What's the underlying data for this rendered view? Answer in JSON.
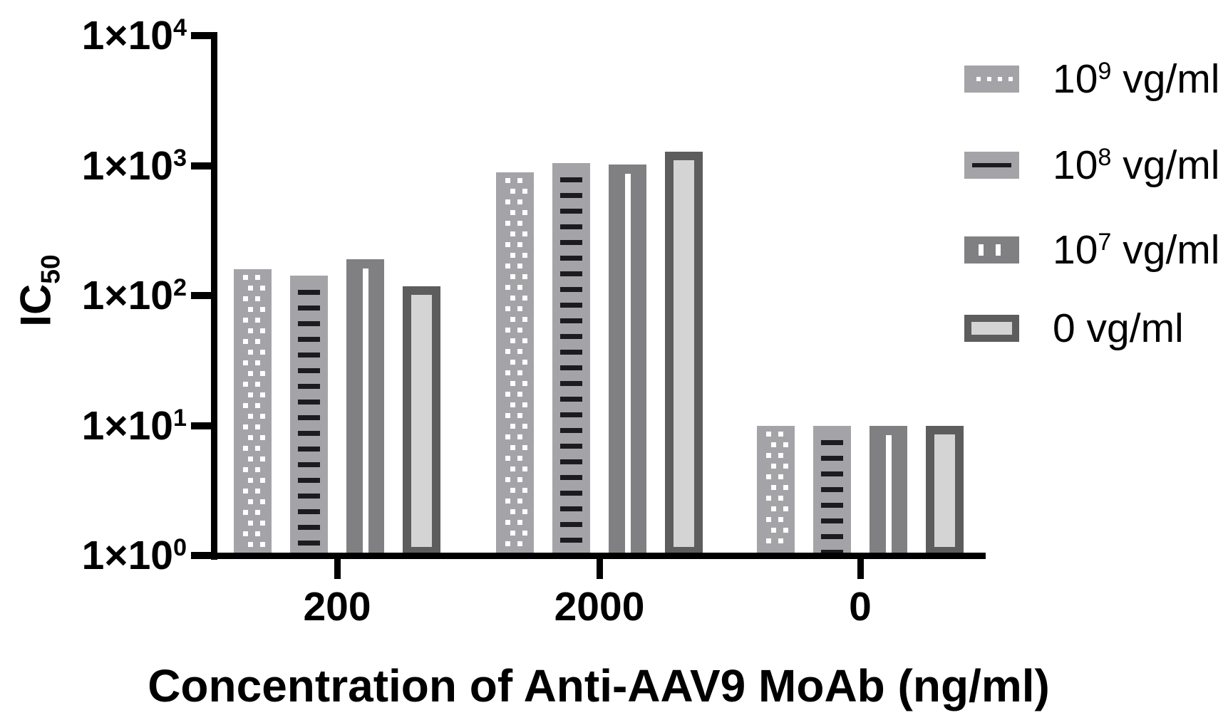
{
  "chart_data": {
    "type": "bar",
    "scale": "log",
    "grid": false,
    "legend_position": "right-top",
    "xlabel": "Concentration of Anti-AAV9 MoAb (ng/ml)",
    "ylabel": {
      "text": "IC",
      "sub": "50"
    },
    "ylim": [
      1,
      10000
    ],
    "categories": [
      "200",
      "2000",
      "0"
    ],
    "yticks": [
      {
        "mantissa": "1×10",
        "exp": "0",
        "value": 1
      },
      {
        "mantissa": "1×10",
        "exp": "1",
        "value": 10
      },
      {
        "mantissa": "1×10",
        "exp": "2",
        "value": 100
      },
      {
        "mantissa": "1×10",
        "exp": "3",
        "value": 1000
      },
      {
        "mantissa": "1×10",
        "exp": "4",
        "value": 10000
      }
    ],
    "series": [
      {
        "name": {
          "base": "10",
          "exp": "9",
          "suffix": " vg/ml"
        },
        "pattern": "dots",
        "fill": "#a4a4a8",
        "pattern_color": "#ffffff",
        "values": [
          160,
          890,
          10
        ]
      },
      {
        "name": {
          "base": "10",
          "exp": "8",
          "suffix": " vg/ml"
        },
        "pattern": "hlines",
        "fill": "#a4a4a8",
        "pattern_color": "#1b1b20",
        "values": [
          143,
          1040,
          10
        ]
      },
      {
        "name": {
          "base": "10",
          "exp": "7",
          "suffix": " vg/ml"
        },
        "pattern": "vdash",
        "fill": "#808083",
        "pattern_color": "#ffffff",
        "values": [
          190,
          1020,
          10
        ]
      },
      {
        "name": {
          "base": "0",
          "exp": "",
          "suffix": " vg/ml"
        },
        "pattern": "outline",
        "fill": "#d4d4d4",
        "border": "#5d5d5d",
        "values": [
          118,
          1275,
          10
        ]
      }
    ],
    "axis_color": "#000000"
  }
}
